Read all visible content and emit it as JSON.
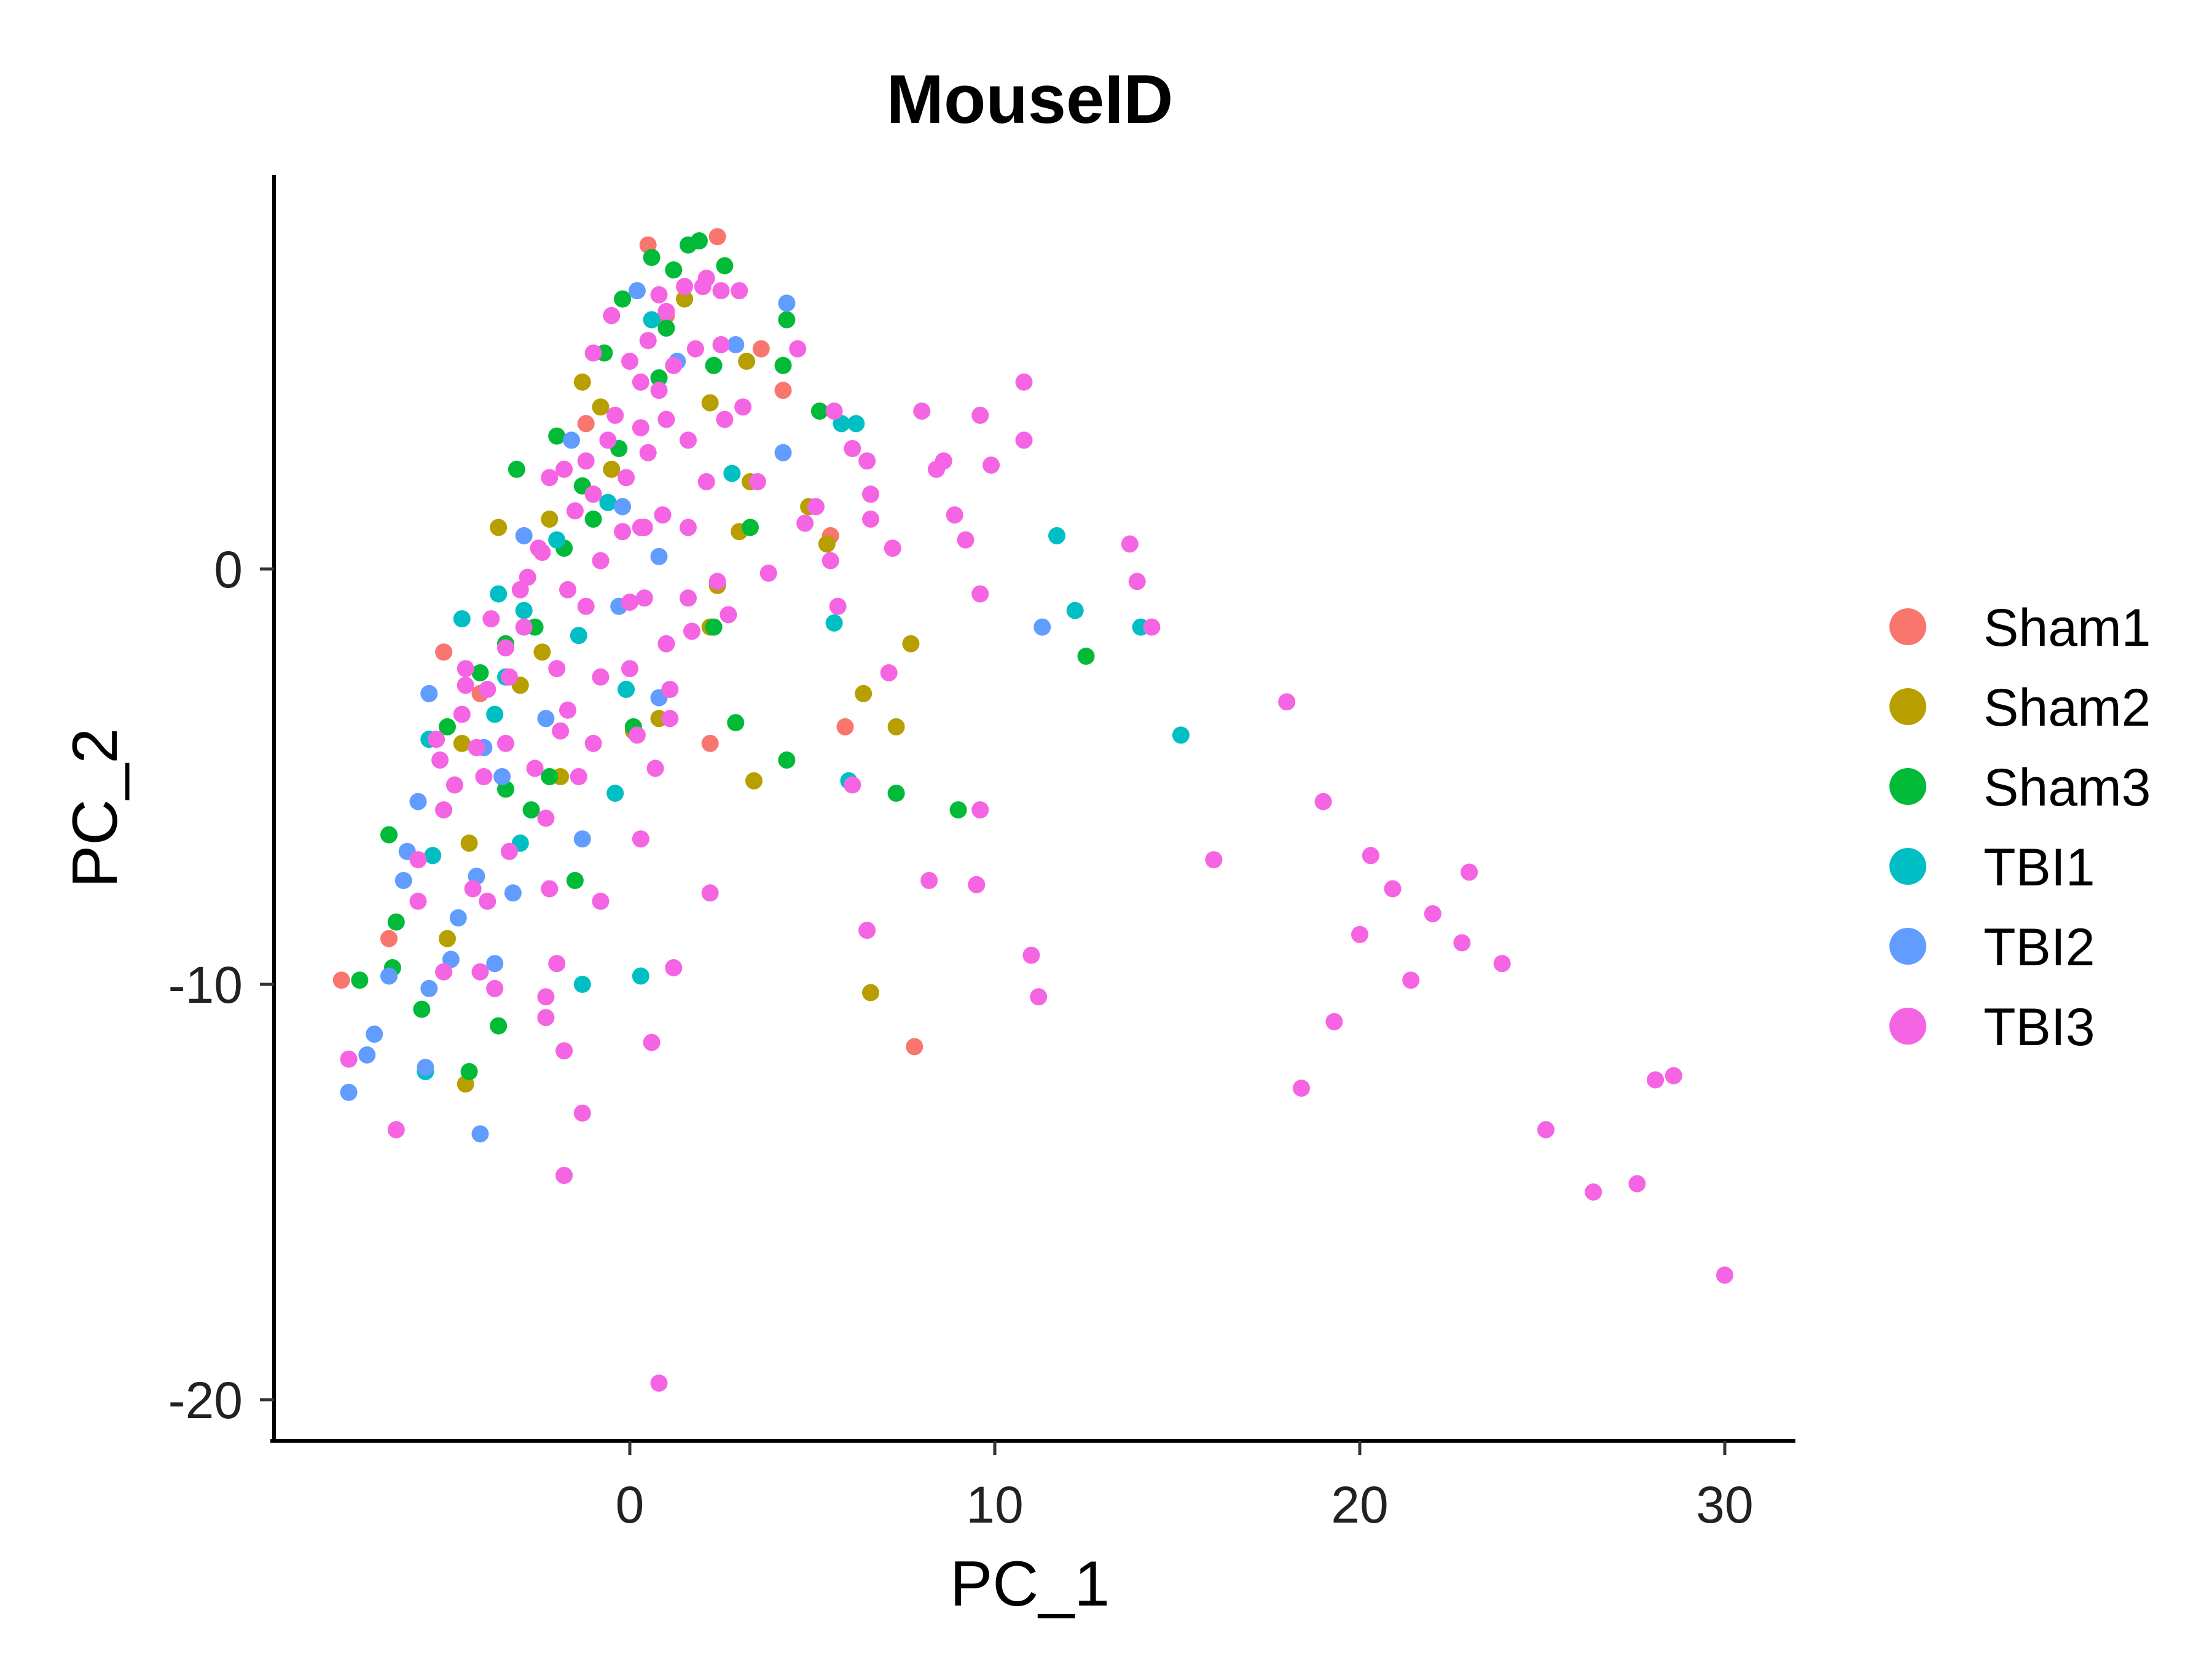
{
  "chart_data": {
    "type": "scatter",
    "title": "MouseID",
    "xlabel": "PC_1",
    "ylabel": "PC_2",
    "xlim": [
      -9.8,
      31.8
    ],
    "ylim": [
      -21,
      9.5
    ],
    "xticks": [
      0,
      10,
      20,
      30
    ],
    "yticks": [
      0,
      -10,
      -20
    ],
    "grid": false,
    "legend_position": "right",
    "series": [
      {
        "name": "Sham1",
        "color": "#F8766D",
        "points": [
          [
            -7.9,
            -9.9
          ],
          [
            -6.6,
            -8.9
          ],
          [
            -5.1,
            -2.0
          ],
          [
            0.5,
            7.8
          ],
          [
            2.4,
            8.0
          ],
          [
            2.2,
            -4.2
          ],
          [
            4.2,
            4.3
          ],
          [
            5.5,
            0.8
          ],
          [
            5.9,
            -3.8
          ],
          [
            7.8,
            -11.5
          ],
          [
            -4.1,
            -3.0
          ],
          [
            -1.2,
            3.5
          ],
          [
            1.0,
            6.1
          ],
          [
            3.6,
            5.3
          ]
        ]
      },
      {
        "name": "Sham2",
        "color": "#B79F00",
        "points": [
          [
            -1.3,
            4.5
          ],
          [
            -0.8,
            3.9
          ],
          [
            -3.6,
            1.0
          ],
          [
            -4.6,
            -4.2
          ],
          [
            -4.4,
            -6.6
          ],
          [
            -5.0,
            -8.9
          ],
          [
            -4.5,
            -12.4
          ],
          [
            -3.0,
            -2.8
          ],
          [
            -1.9,
            -5.0
          ],
          [
            -2.4,
            -2.0
          ],
          [
            0.1,
            -3.9
          ],
          [
            0.8,
            -3.6
          ],
          [
            2.2,
            -1.4
          ],
          [
            2.4,
            -0.4
          ],
          [
            3.0,
            0.9
          ],
          [
            3.3,
            2.1
          ],
          [
            3.4,
            -5.1
          ],
          [
            4.9,
            1.5
          ],
          [
            5.4,
            0.6
          ],
          [
            6.4,
            -3.0
          ],
          [
            6.6,
            -10.2
          ],
          [
            7.3,
            -3.8
          ],
          [
            7.7,
            -1.8
          ],
          [
            2.2,
            4.0
          ],
          [
            -2.2,
            1.2
          ],
          [
            -0.5,
            2.4
          ],
          [
            1.5,
            6.5
          ],
          [
            3.2,
            5.0
          ]
        ]
      },
      {
        "name": "Sham3",
        "color": "#00BA38",
        "points": [
          [
            0.6,
            7.5
          ],
          [
            1.6,
            7.8
          ],
          [
            1.9,
            7.9
          ],
          [
            2.6,
            7.3
          ],
          [
            1.2,
            7.2
          ],
          [
            4.3,
            6.0
          ],
          [
            4.2,
            4.9
          ],
          [
            2.3,
            4.9
          ],
          [
            5.2,
            3.8
          ],
          [
            -0.7,
            5.2
          ],
          [
            -0.3,
            2.9
          ],
          [
            -1.0,
            1.2
          ],
          [
            -1.8,
            0.5
          ],
          [
            -2.6,
            -1.4
          ],
          [
            -3.4,
            -1.8
          ],
          [
            -4.1,
            -2.5
          ],
          [
            -5.0,
            -3.8
          ],
          [
            -6.6,
            -6.4
          ],
          [
            -6.4,
            -8.5
          ],
          [
            -5.7,
            -10.6
          ],
          [
            -6.5,
            -9.6
          ],
          [
            -7.4,
            -9.9
          ],
          [
            -3.6,
            -11.0
          ],
          [
            -4.4,
            -12.1
          ],
          [
            -3.4,
            -5.3
          ],
          [
            -2.7,
            -5.8
          ],
          [
            -2.2,
            -5.0
          ],
          [
            -1.5,
            -7.5
          ],
          [
            0.1,
            -3.8
          ],
          [
            2.3,
            -1.4
          ],
          [
            2.9,
            -3.7
          ],
          [
            3.3,
            1.0
          ],
          [
            4.3,
            -4.6
          ],
          [
            7.3,
            -5.4
          ],
          [
            9.0,
            -5.8
          ],
          [
            12.5,
            -2.1
          ],
          [
            -3.1,
            2.4
          ],
          [
            -0.2,
            6.5
          ],
          [
            1.0,
            5.8
          ],
          [
            -2.0,
            3.2
          ],
          [
            -1.3,
            2.0
          ],
          [
            0.8,
            4.6
          ]
        ]
      },
      {
        "name": "TBI1",
        "color": "#00BFC4",
        "points": [
          [
            6.2,
            3.5
          ],
          [
            5.8,
            3.5
          ],
          [
            2.8,
            2.3
          ],
          [
            11.7,
            0.8
          ],
          [
            12.2,
            -1.0
          ],
          [
            14.0,
            -1.4
          ],
          [
            15.1,
            -4.0
          ],
          [
            5.6,
            -1.3
          ],
          [
            6.0,
            -5.1
          ],
          [
            -4.6,
            -1.2
          ],
          [
            -3.6,
            -0.6
          ],
          [
            -2.9,
            -1.0
          ],
          [
            -3.4,
            -2.6
          ],
          [
            -5.5,
            -4.1
          ],
          [
            -5.4,
            -6.9
          ],
          [
            -3.0,
            -6.6
          ],
          [
            -1.3,
            -10.0
          ],
          [
            0.3,
            -9.8
          ],
          [
            -0.4,
            -5.4
          ],
          [
            -0.1,
            -2.9
          ],
          [
            -5.6,
            -12.1
          ],
          [
            -2.0,
            0.7
          ],
          [
            -1.4,
            -1.6
          ],
          [
            -0.6,
            1.6
          ],
          [
            0.6,
            6.0
          ],
          [
            -3.7,
            -3.5
          ]
        ]
      },
      {
        "name": "TBI2",
        "color": "#619CFF",
        "points": [
          [
            -7.7,
            -12.6
          ],
          [
            -7.2,
            -11.7
          ],
          [
            -7.0,
            -11.2
          ],
          [
            -6.6,
            -9.8
          ],
          [
            -6.2,
            -7.5
          ],
          [
            -6.1,
            -6.8
          ],
          [
            -5.8,
            -5.6
          ],
          [
            -5.5,
            -3.0
          ],
          [
            -5.5,
            -10.1
          ],
          [
            -5.6,
            -12.0
          ],
          [
            -4.9,
            -9.4
          ],
          [
            -4.7,
            -8.4
          ],
          [
            -4.1,
            -13.6
          ],
          [
            -3.7,
            -9.5
          ],
          [
            -3.2,
            -7.8
          ],
          [
            -3.5,
            -5.0
          ],
          [
            -1.3,
            -6.5
          ],
          [
            -0.3,
            -0.9
          ],
          [
            0.8,
            0.3
          ],
          [
            0.8,
            -3.1
          ],
          [
            4.3,
            6.4
          ],
          [
            4.2,
            2.8
          ],
          [
            2.9,
            5.4
          ],
          [
            11.3,
            -1.4
          ],
          [
            -4.0,
            -4.3
          ],
          [
            -2.3,
            -3.6
          ],
          [
            0.2,
            6.7
          ],
          [
            -1.6,
            3.1
          ],
          [
            -2.9,
            0.8
          ],
          [
            -4.2,
            -7.4
          ],
          [
            -0.2,
            1.5
          ],
          [
            1.3,
            5.0
          ]
        ]
      },
      {
        "name": "TBI3",
        "color": "#F564E3",
        "points": [
          [
            -7.7,
            -11.8
          ],
          [
            -6.4,
            -13.5
          ],
          [
            -5.8,
            -8.0
          ],
          [
            -5.1,
            -9.7
          ],
          [
            -5.8,
            -7.0
          ],
          [
            -5.3,
            -4.1
          ],
          [
            -4.8,
            -5.2
          ],
          [
            -4.3,
            -7.7
          ],
          [
            -4.1,
            -9.7
          ],
          [
            -4.5,
            -2.4
          ],
          [
            -3.7,
            -10.1
          ],
          [
            -2.3,
            -10.8
          ],
          [
            -2.2,
            -7.7
          ],
          [
            -2.3,
            -10.3
          ],
          [
            -2.0,
            -9.5
          ],
          [
            -1.8,
            -11.6
          ],
          [
            -1.8,
            -14.6
          ],
          [
            -1.3,
            -13.1
          ],
          [
            -1.4,
            -5.0
          ],
          [
            -1.0,
            -4.2
          ],
          [
            0.0,
            -2.4
          ],
          [
            0.7,
            -4.8
          ],
          [
            0.6,
            -11.4
          ],
          [
            0.8,
            -19.6
          ],
          [
            1.2,
            -9.6
          ],
          [
            2.2,
            -7.8
          ],
          [
            1.1,
            -3.6
          ],
          [
            1.7,
            -1.5
          ],
          [
            2.4,
            -0.3
          ],
          [
            2.7,
            -1.1
          ],
          [
            3.8,
            -0.1
          ],
          [
            5.1,
            1.5
          ],
          [
            5.5,
            0.2
          ],
          [
            5.6,
            3.8
          ],
          [
            6.1,
            2.9
          ],
          [
            6.5,
            2.6
          ],
          [
            6.6,
            1.8
          ],
          [
            6.6,
            1.2
          ],
          [
            6.5,
            -8.7
          ],
          [
            8.0,
            3.8
          ],
          [
            8.4,
            2.4
          ],
          [
            8.6,
            2.6
          ],
          [
            8.2,
            -7.5
          ],
          [
            8.9,
            1.3
          ],
          [
            9.2,
            0.7
          ],
          [
            9.6,
            -0.6
          ],
          [
            9.5,
            -7.6
          ],
          [
            9.6,
            -5.8
          ],
          [
            9.6,
            3.7
          ],
          [
            9.9,
            2.5
          ],
          [
            10.8,
            3.1
          ],
          [
            10.8,
            4.5
          ],
          [
            11.0,
            -9.3
          ],
          [
            11.2,
            -10.3
          ],
          [
            13.7,
            0.6
          ],
          [
            13.9,
            -0.3
          ],
          [
            14.3,
            -1.4
          ],
          [
            16.0,
            -7.0
          ],
          [
            18.0,
            -3.2
          ],
          [
            18.4,
            -12.5
          ],
          [
            19.0,
            -5.6
          ],
          [
            19.3,
            -10.9
          ],
          [
            20.0,
            -8.8
          ],
          [
            20.3,
            -6.9
          ],
          [
            20.9,
            -7.7
          ],
          [
            21.4,
            -9.9
          ],
          [
            22.0,
            -8.3
          ],
          [
            22.8,
            -9.0
          ],
          [
            23.0,
            -7.3
          ],
          [
            23.9,
            -9.5
          ],
          [
            25.1,
            -13.5
          ],
          [
            26.4,
            -15.0
          ],
          [
            27.6,
            -14.8
          ],
          [
            28.1,
            -12.3
          ],
          [
            28.6,
            -12.2
          ],
          [
            30.0,
            -17.0
          ],
          [
            -3.0,
            -0.5
          ],
          [
            -2.5,
            0.5
          ],
          [
            -1.0,
            1.8
          ],
          [
            0.0,
            5.0
          ],
          [
            0.5,
            5.5
          ],
          [
            1.0,
            6.2
          ],
          [
            1.5,
            6.8
          ],
          [
            2.0,
            6.8
          ],
          [
            2.5,
            6.7
          ],
          [
            3.0,
            6.7
          ],
          [
            0.3,
            4.5
          ],
          [
            0.8,
            4.3
          ],
          [
            1.2,
            4.9
          ],
          [
            1.8,
            5.3
          ],
          [
            2.5,
            5.4
          ],
          [
            -0.4,
            3.7
          ],
          [
            0.3,
            3.4
          ],
          [
            1.0,
            3.6
          ],
          [
            -1.8,
            2.4
          ],
          [
            -2.2,
            2.2
          ],
          [
            -1.2,
            2.6
          ],
          [
            -0.6,
            3.1
          ],
          [
            -2.4,
            0.4
          ],
          [
            -1.7,
            -0.5
          ],
          [
            -1.2,
            -0.9
          ],
          [
            -2.9,
            -1.4
          ],
          [
            -3.4,
            -1.9
          ],
          [
            -3.9,
            -2.9
          ],
          [
            -4.6,
            -3.5
          ],
          [
            -4.2,
            -4.3
          ],
          [
            -3.4,
            -4.2
          ],
          [
            -2.0,
            -2.4
          ],
          [
            -1.7,
            -3.4
          ],
          [
            -0.2,
            0.9
          ],
          [
            0.4,
            1.0
          ],
          [
            0.9,
            1.3
          ],
          [
            1.6,
            1.0
          ],
          [
            0.4,
            -0.7
          ],
          [
            1.0,
            -1.8
          ],
          [
            3.5,
            2.1
          ],
          [
            0.3,
            1.0
          ],
          [
            -0.8,
            0.2
          ],
          [
            -3.3,
            -2.6
          ],
          [
            -5.1,
            -5.8
          ],
          [
            4.8,
            1.1
          ],
          [
            7.2,
            0.5
          ],
          [
            6.1,
            -5.2
          ],
          [
            5.7,
            -0.9
          ],
          [
            7.1,
            -2.5
          ],
          [
            0.0,
            -0.8
          ],
          [
            1.1,
            -2.9
          ],
          [
            -4.0,
            -5.0
          ],
          [
            -3.3,
            -6.8
          ],
          [
            -2.6,
            -4.8
          ],
          [
            1.6,
            -0.7
          ],
          [
            2.1,
            2.1
          ],
          [
            -0.8,
            -2.6
          ],
          [
            0.2,
            -4.0
          ],
          [
            0.5,
            2.8
          ],
          [
            -1.0,
            5.2
          ],
          [
            -0.5,
            6.1
          ],
          [
            0.8,
            6.6
          ],
          [
            2.1,
            7.0
          ],
          [
            4.6,
            5.3
          ],
          [
            3.1,
            3.9
          ],
          [
            2.6,
            3.6
          ],
          [
            1.6,
            3.1
          ],
          [
            -0.1,
            2.2
          ],
          [
            -1.5,
            1.4
          ],
          [
            -2.8,
            -0.2
          ],
          [
            -3.8,
            -1.2
          ],
          [
            -4.5,
            -2.8
          ],
          [
            -5.2,
            -4.6
          ],
          [
            -1.9,
            -3.9
          ],
          [
            -2.3,
            -6.0
          ],
          [
            -3.9,
            -8.0
          ],
          [
            -0.8,
            -8.0
          ],
          [
            0.3,
            -6.5
          ]
        ]
      }
    ]
  }
}
